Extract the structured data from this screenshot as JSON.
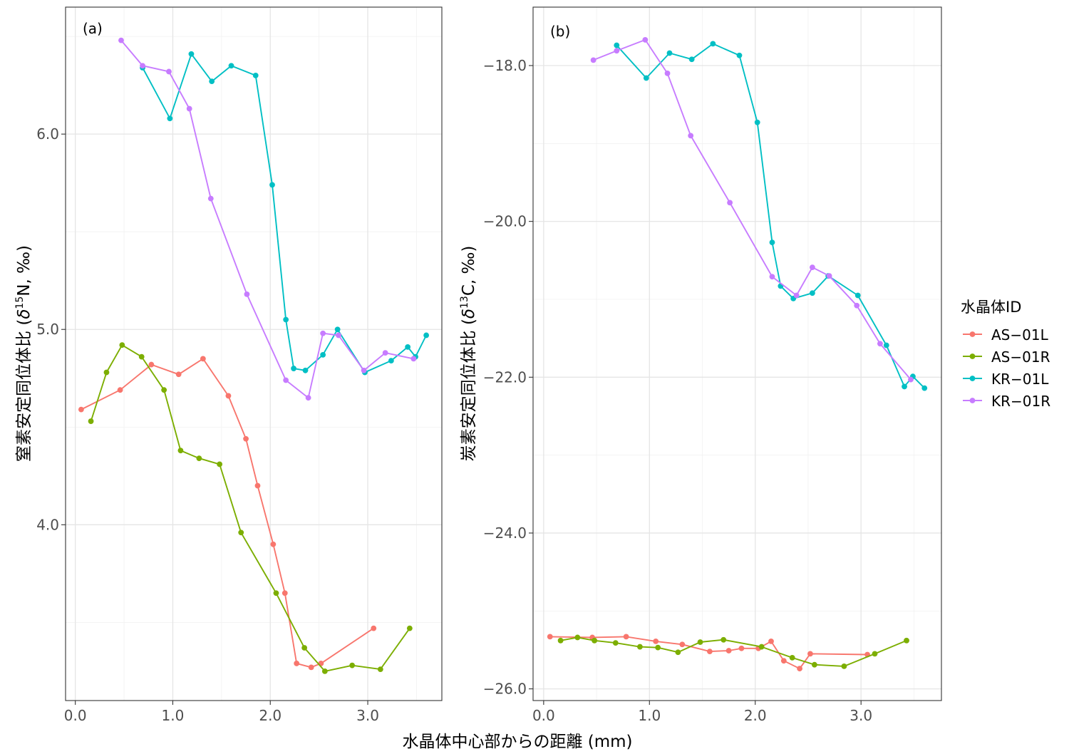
{
  "xlabel": "水晶体中心部からの距離 (mm)",
  "legend": {
    "title": "水晶体ID",
    "placement": "right",
    "entries": [
      {
        "name": "AS−01L",
        "color": "#F8766D"
      },
      {
        "name": "AS−01R",
        "color": "#7CAE00"
      },
      {
        "name": "KR−01L",
        "color": "#00BFC4"
      },
      {
        "name": "KR−01R",
        "color": "#C77CFF"
      }
    ]
  },
  "chart_data": [
    {
      "type": "line",
      "panel_label": "(a)",
      "ylabel_prefix": "窒素安定同位体比 (",
      "ylabel_delta": "δ",
      "ylabel_sup": "15",
      "ylabel_suffix": "N, ‰)",
      "xlim": [
        -0.1,
        3.76
      ],
      "ylim": [
        3.1,
        6.65
      ],
      "x_ticks": [
        0,
        1,
        2,
        3
      ],
      "x_tick_labels": [
        "0.0",
        "1.0",
        "2.0",
        "3.0"
      ],
      "y_ticks": [
        4,
        5,
        6
      ],
      "y_tick_labels": [
        "4.0",
        "5.0",
        "6.0"
      ],
      "grid": true,
      "series": [
        {
          "name": "AS−01L",
          "color": "#F8766D",
          "x": [
            0.06,
            0.46,
            0.78,
            1.06,
            1.31,
            1.57,
            1.75,
            1.87,
            2.03,
            2.15,
            2.27,
            2.42,
            2.52,
            3.06
          ],
          "y": [
            4.59,
            4.69,
            4.82,
            4.77,
            4.85,
            4.66,
            4.44,
            4.2,
            3.9,
            3.65,
            3.29,
            3.27,
            3.29,
            3.47
          ]
        },
        {
          "name": "AS−01R",
          "color": "#7CAE00",
          "x": [
            0.16,
            0.32,
            0.48,
            0.68,
            0.91,
            1.08,
            1.27,
            1.48,
            1.7,
            2.06,
            2.35,
            2.56,
            2.84,
            3.13,
            3.43
          ],
          "y": [
            4.53,
            4.78,
            4.92,
            4.86,
            4.69,
            4.38,
            4.34,
            4.31,
            3.96,
            3.65,
            3.37,
            3.25,
            3.28,
            3.26,
            3.47
          ]
        },
        {
          "name": "KR−01L",
          "color": "#00BFC4",
          "x": [
            0.69,
            0.97,
            1.19,
            1.4,
            1.6,
            1.85,
            2.02,
            2.16,
            2.24,
            2.36,
            2.54,
            2.69,
            2.97,
            3.24,
            3.41,
            3.49,
            3.6
          ],
          "y": [
            6.34,
            6.08,
            6.41,
            6.27,
            6.35,
            6.3,
            5.74,
            5.05,
            4.8,
            4.79,
            4.87,
            5.0,
            4.78,
            4.84,
            4.91,
            4.86,
            4.97
          ]
        },
        {
          "name": "KR−01R",
          "color": "#C77CFF",
          "x": [
            0.47,
            0.69,
            0.96,
            1.17,
            1.39,
            1.76,
            2.16,
            2.39,
            2.54,
            2.7,
            2.96,
            3.18,
            3.47
          ],
          "y": [
            6.48,
            6.35,
            6.32,
            6.13,
            5.67,
            5.18,
            4.74,
            4.65,
            4.98,
            4.97,
            4.79,
            4.88,
            4.85
          ]
        }
      ]
    },
    {
      "type": "line",
      "panel_label": "(b)",
      "ylabel_prefix": "炭素安定同位体比 (",
      "ylabel_delta": "δ",
      "ylabel_sup": "13",
      "ylabel_suffix": "C, ‰)",
      "xlim": [
        -0.1,
        3.76
      ],
      "ylim": [
        -26.15,
        -17.25
      ],
      "x_ticks": [
        0,
        1,
        2,
        3
      ],
      "x_tick_labels": [
        "0.0",
        "1.0",
        "2.0",
        "3.0"
      ],
      "y_ticks": [
        -26,
        -24,
        -22,
        -20,
        -18
      ],
      "y_tick_labels": [
        "−26.0",
        "−24.0",
        "−22.0",
        "−20.0",
        "−18.0"
      ],
      "grid": true,
      "series": [
        {
          "name": "AS−01L",
          "color": "#F8766D",
          "x": [
            0.06,
            0.46,
            0.78,
            1.06,
            1.31,
            1.57,
            1.75,
            1.87,
            2.03,
            2.15,
            2.27,
            2.42,
            2.52,
            3.06
          ],
          "y": [
            -25.33,
            -25.34,
            -25.33,
            -25.39,
            -25.43,
            -25.52,
            -25.51,
            -25.48,
            -25.48,
            -25.39,
            -25.64,
            -25.74,
            -25.55,
            -25.56
          ]
        },
        {
          "name": "AS−01R",
          "color": "#7CAE00",
          "x": [
            0.16,
            0.32,
            0.48,
            0.68,
            0.91,
            1.08,
            1.27,
            1.48,
            1.7,
            2.06,
            2.35,
            2.56,
            2.84,
            3.13,
            3.43
          ],
          "y": [
            -25.38,
            -25.34,
            -25.38,
            -25.41,
            -25.46,
            -25.47,
            -25.53,
            -25.4,
            -25.37,
            -25.46,
            -25.6,
            -25.69,
            -25.71,
            -25.55,
            -25.38
          ]
        },
        {
          "name": "KR−01L",
          "color": "#00BFC4",
          "x": [
            0.69,
            0.97,
            1.19,
            1.4,
            1.6,
            1.85,
            2.02,
            2.16,
            2.24,
            2.36,
            2.54,
            2.69,
            2.97,
            3.24,
            3.41,
            3.49,
            3.6
          ],
          "y": [
            -17.74,
            -18.16,
            -17.84,
            -17.92,
            -17.72,
            -17.87,
            -18.73,
            -20.27,
            -20.83,
            -20.99,
            -20.92,
            -20.7,
            -20.95,
            -21.59,
            -22.12,
            -21.99,
            -22.14
          ]
        },
        {
          "name": "KR−01R",
          "color": "#C77CFF",
          "x": [
            0.47,
            0.69,
            0.96,
            1.17,
            1.39,
            1.76,
            2.16,
            2.39,
            2.54,
            2.7,
            2.96,
            3.18,
            3.47
          ],
          "y": [
            -17.93,
            -17.81,
            -17.67,
            -18.1,
            -18.9,
            -19.76,
            -20.71,
            -20.95,
            -20.59,
            -20.7,
            -21.08,
            -21.57,
            -22.03
          ]
        }
      ]
    }
  ]
}
